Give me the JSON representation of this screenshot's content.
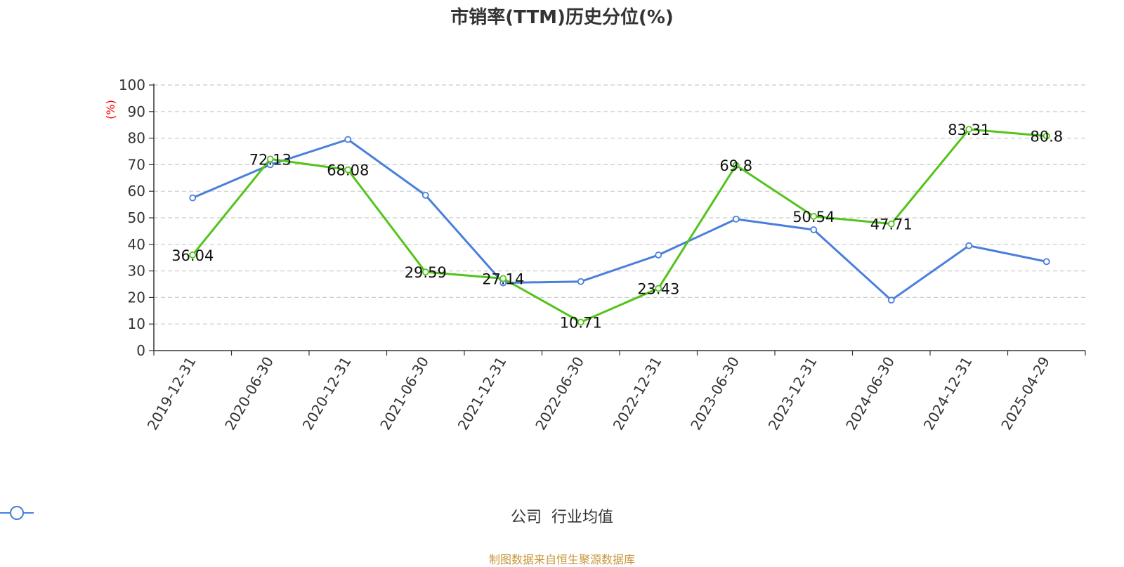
{
  "chart_data": {
    "type": "line",
    "title": "市销率(TTM)历史分位(%)",
    "ylabel": "(%)",
    "xlabel": "",
    "ylim": [
      0,
      100
    ],
    "yticks": [
      0,
      10,
      20,
      30,
      40,
      50,
      60,
      70,
      80,
      90,
      100
    ],
    "grid": true,
    "legend_position": "bottom",
    "x": [
      "2019-12-31",
      "2020-06-30",
      "2020-12-31",
      "2021-06-30",
      "2021-12-31",
      "2022-06-30",
      "2022-12-31",
      "2023-06-30",
      "2023-12-31",
      "2024-06-30",
      "2024-12-31",
      "2025-04-29"
    ],
    "series": [
      {
        "name": "公司",
        "color": "#52c41a",
        "show_labels": true,
        "values": [
          36.04,
          72.13,
          68.08,
          29.59,
          27.14,
          10.71,
          23.43,
          69.8,
          50.54,
          47.71,
          83.31,
          80.8
        ]
      },
      {
        "name": "行业均值",
        "color": "#4a7fdc",
        "show_labels": false,
        "values": [
          57.5,
          70,
          79.5,
          58.5,
          25.5,
          26,
          36,
          49.5,
          45.5,
          19,
          39.5,
          33.5
        ]
      }
    ]
  },
  "source": "制图数据来自恒生聚源数据库",
  "colors": {
    "ylabel": "#ff0000",
    "grid": "#cccccc",
    "axis": "#333333"
  }
}
